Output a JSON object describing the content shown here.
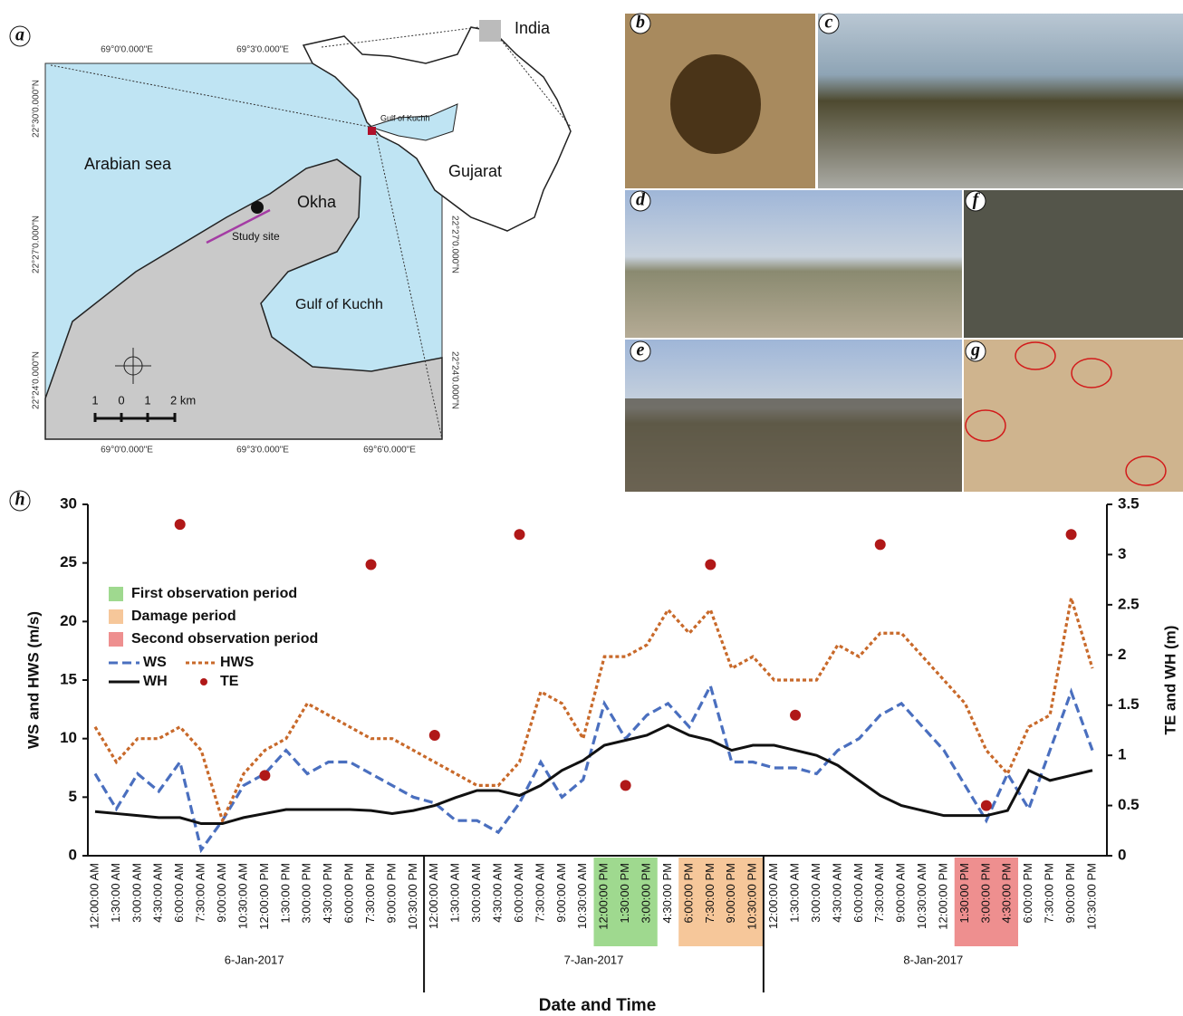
{
  "panel_labels": [
    "a",
    "b",
    "c",
    "d",
    "e",
    "f",
    "g",
    "h"
  ],
  "map": {
    "lon_labels": [
      "69°0'0.000\"E",
      "69°3'0.000\"E",
      "69°6'0.000\"E"
    ],
    "lat_labels": [
      "22°30'0.000\"N",
      "22°27'0.000\"N",
      "22°24'0.000\"N"
    ],
    "places": [
      "India",
      "Gulf of Kuchh",
      "Arabian sea",
      "Okha",
      "Study site",
      "Gujarat",
      "Gulf of Kuchh"
    ],
    "scale_labels": [
      "1",
      "0",
      "1",
      "2 km"
    ]
  },
  "chart_data": {
    "type": "line",
    "x_label": "Date and Time",
    "y_label": "WS and HWS (m/s)",
    "y2_label": "TE and WH (m)",
    "categories": [
      "12:00:00 AM",
      "1:30:00 AM",
      "3:00:00 AM",
      "4:30:00 AM",
      "6:00:00 AM",
      "7:30:00 AM",
      "9:00:00 AM",
      "10:30:00 AM",
      "12:00:00 PM",
      "1:30:00 PM",
      "3:00:00 PM",
      "4:30:00 PM",
      "6:00:00 PM",
      "7:30:00 PM",
      "9:00:00 PM",
      "10:30:00 PM",
      "12:00:00 AM",
      "1:30:00 AM",
      "3:00:00 AM",
      "4:30:00 AM",
      "6:00:00 AM",
      "7:30:00 AM",
      "9:00:00 AM",
      "10:30:00 AM",
      "12:00:00 PM",
      "1:30:00 PM",
      "3:00:00 PM",
      "4:30:00 PM",
      "6:00:00 PM",
      "7:30:00 PM",
      "9:00:00 PM",
      "10:30:00 PM",
      "12:00:00 AM",
      "1:30:00 AM",
      "3:00:00 AM",
      "4:30:00 AM",
      "6:00:00 AM",
      "7:30:00 AM",
      "9:00:00 AM",
      "10:30:00 AM",
      "12:00:00 PM",
      "1:30:00 PM",
      "3:00:00 PM",
      "4:30:00 PM",
      "6:00:00 PM",
      "7:30:00 PM",
      "9:00:00 PM",
      "10:30:00 PM"
    ],
    "groups": [
      "6-Jan-2017",
      "7-Jan-2017",
      "8-Jan-2017"
    ],
    "periods": [
      {
        "name": "First observation period",
        "color": "#9fd98f",
        "span": [
          24,
          26
        ]
      },
      {
        "name": "Damage period",
        "color": "#f6c79a",
        "span": [
          28,
          31
        ]
      },
      {
        "name": "Second observation period",
        "color": "#ee8f8f",
        "span": [
          41,
          43
        ]
      }
    ],
    "series": [
      {
        "name": "WS",
        "color": "#4a6fbf",
        "style": "dashed",
        "values": [
          7,
          4,
          7,
          5.5,
          8,
          0.5,
          3,
          6,
          7,
          9,
          7,
          8,
          8,
          7,
          6,
          5,
          4.5,
          3,
          3,
          2,
          4.5,
          8,
          5,
          6.5,
          13,
          10,
          12,
          13,
          11,
          14.5,
          8,
          8,
          7.5,
          7.5,
          7,
          9,
          10,
          12,
          13,
          11,
          9,
          6,
          3,
          7,
          4,
          9,
          14,
          9
        ]
      },
      {
        "name": "HWS",
        "color": "#c8692a",
        "style": "dotted",
        "values": [
          11,
          8,
          10,
          10,
          11,
          9,
          3,
          7,
          9,
          10,
          13,
          12,
          11,
          10,
          10,
          9,
          8,
          7,
          6,
          6,
          8,
          14,
          13,
          10,
          17,
          17,
          18,
          21,
          19,
          21,
          16,
          17,
          15,
          15,
          15,
          18,
          17,
          19,
          19,
          17,
          15,
          13,
          9,
          7,
          11,
          12,
          22,
          16
        ]
      },
      {
        "name": "WH",
        "color": "#111111",
        "style": "solid",
        "axis": "y2",
        "values": [
          0.44,
          0.42,
          0.4,
          0.38,
          0.38,
          0.32,
          0.32,
          0.38,
          0.42,
          0.46,
          0.46,
          0.46,
          0.46,
          0.45,
          0.42,
          0.45,
          0.5,
          0.58,
          0.65,
          0.65,
          0.6,
          0.7,
          0.85,
          0.95,
          1.1,
          1.15,
          1.2,
          1.3,
          1.2,
          1.15,
          1.05,
          1.1,
          1.1,
          1.05,
          1.0,
          0.9,
          0.75,
          0.6,
          0.5,
          0.45,
          0.4,
          0.4,
          0.4,
          0.45,
          0.85,
          0.75,
          0.8,
          0.85
        ]
      },
      {
        "name": "TE",
        "color": "#b01818",
        "style": "points",
        "axis": "y2",
        "values": [
          null,
          null,
          null,
          null,
          3.3,
          null,
          null,
          null,
          0.8,
          null,
          null,
          null,
          null,
          2.9,
          null,
          null,
          1.2,
          null,
          null,
          null,
          3.2,
          null,
          null,
          null,
          null,
          0.7,
          null,
          null,
          null,
          2.9,
          null,
          null,
          null,
          1.4,
          null,
          null,
          null,
          3.1,
          null,
          null,
          null,
          null,
          0.5,
          null,
          null,
          null,
          3.2,
          null
        ]
      }
    ],
    "ylim": [
      0,
      30
    ],
    "yticks": [
      0,
      5,
      10,
      15,
      20,
      25,
      30
    ],
    "y2lim": [
      0,
      3.5
    ],
    "y2ticks": [
      0,
      0.5,
      1,
      1.5,
      2,
      2.5,
      3,
      3.5
    ],
    "legend": "upper left"
  }
}
